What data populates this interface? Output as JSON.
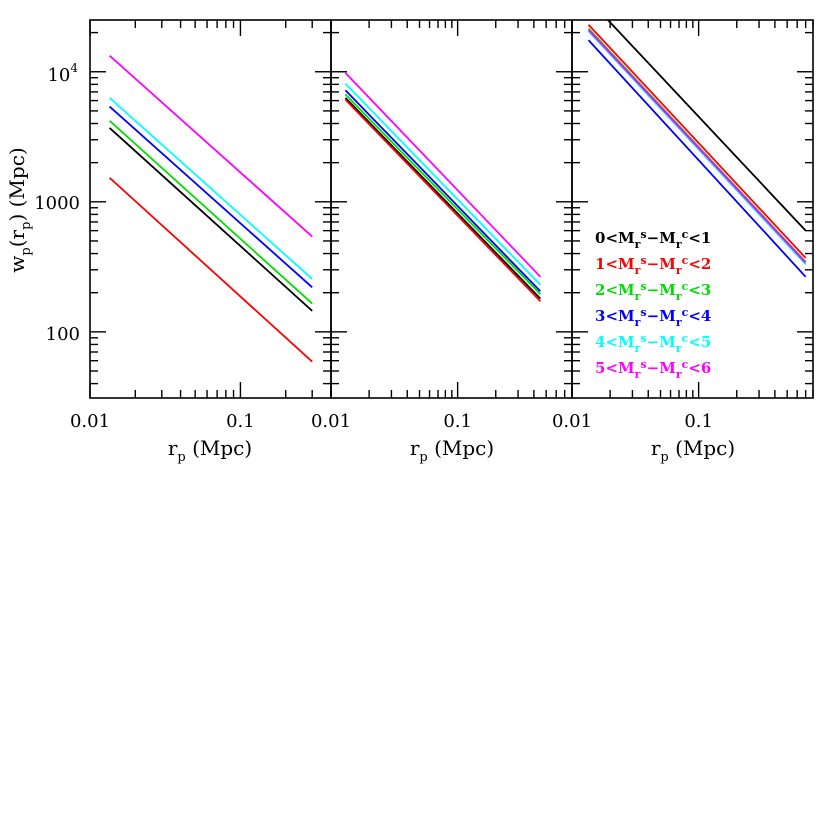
{
  "chart_data": {
    "type": "line",
    "x_scale": "log",
    "y_scale": "log",
    "x_axis_label": {
      "base": "r",
      "sub": "p",
      "rest": " (Mpc)"
    },
    "y_axis_label": {
      "base": "w",
      "sub": "p",
      "open": "(r",
      "inner_sub": "p",
      "rest": ")  (Mpc)"
    },
    "y_tick_labels": [
      {
        "value": 100,
        "text": "100"
      },
      {
        "value": 1000,
        "text": "1000"
      },
      {
        "value": 10000,
        "base": "10",
        "exp": "4"
      }
    ],
    "ylim": [
      31,
      25000
    ],
    "series_colors": [
      "#000000",
      "#ff0000",
      "#00dd00",
      "#0000ff",
      "#00ffff",
      "#ff00ff"
    ],
    "legend": [
      {
        "lo": "0",
        "hi": "1"
      },
      {
        "lo": "1",
        "hi": "2"
      },
      {
        "lo": "2",
        "hi": "3"
      },
      {
        "lo": "3",
        "hi": "4"
      },
      {
        "lo": "4",
        "hi": "5"
      },
      {
        "lo": "5",
        "hi": "6"
      }
    ],
    "legend_symbols": {
      "M": "M",
      "sub": "r",
      "sup_s": "s",
      "sup_c": "c",
      "lt": "<",
      "minus": "−"
    },
    "panels": [
      {
        "xlim": [
          0.01,
          0.4
        ],
        "x_tick_labels": [
          {
            "value": 0.01,
            "text": "0.01"
          },
          {
            "value": 0.1,
            "text": "0.1"
          }
        ],
        "series": [
          {
            "x": [
              0.0135,
              0.3
            ],
            "y": [
              3700,
              145
            ]
          },
          {
            "x": [
              0.0135,
              0.3
            ],
            "y": [
              1530,
              59
            ]
          },
          {
            "x": [
              0.0135,
              0.3
            ],
            "y": [
              4200,
              165
            ]
          },
          {
            "x": [
              0.0135,
              0.3
            ],
            "y": [
              5400,
              220
            ]
          },
          {
            "x": [
              0.0135,
              0.3
            ],
            "y": [
              6300,
              255
            ]
          },
          {
            "x": [
              0.0135,
              0.3
            ],
            "y": [
              13300,
              540
            ]
          }
        ]
      },
      {
        "xlim": [
          0.01,
          0.8
        ],
        "x_tick_labels": [
          {
            "value": 0.01,
            "text": "0.01"
          },
          {
            "value": 0.1,
            "text": "0.1"
          }
        ],
        "series": [
          {
            "x": [
              0.013,
              0.45
            ],
            "y": [
              6300,
              180
            ]
          },
          {
            "x": [
              0.013,
              0.45
            ],
            "y": [
              6100,
              172
            ]
          },
          {
            "x": [
              0.013,
              0.45
            ],
            "y": [
              6700,
              195
            ]
          },
          {
            "x": [
              0.013,
              0.45
            ],
            "y": [
              7200,
              205
            ]
          },
          {
            "x": [
              0.013,
              0.45
            ],
            "y": [
              8100,
              230
            ]
          },
          {
            "x": [
              0.013,
              0.45
            ],
            "y": [
              9800,
              265
            ]
          }
        ]
      },
      {
        "xlim": [
          0.01,
          0.8
        ],
        "x_tick_labels": [
          {
            "value": 0.01,
            "text": "0.01"
          },
          {
            "value": 0.1,
            "text": "0.1"
          }
        ],
        "series": [
          {
            "x": [
              0.0185,
              0.7
            ],
            "y": [
              26000,
              600
            ]
          },
          {
            "x": [
              0.0135,
              0.7
            ],
            "y": [
              23000,
              370
            ]
          },
          {
            "x": [
              0.0135,
              0.7
            ],
            "y": [
              21500,
              345
            ]
          },
          {
            "x": [
              0.0135,
              0.7
            ],
            "y": [
              17500,
              265
            ]
          },
          {
            "x": [
              0.0135,
              0.7
            ],
            "y": [
              20500,
              330
            ]
          },
          {
            "x": [
              0.0135,
              0.7
            ],
            "y": [
              21000,
              340
            ]
          }
        ]
      }
    ]
  }
}
